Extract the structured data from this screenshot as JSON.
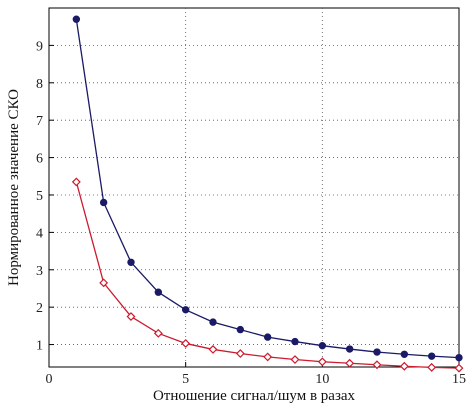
{
  "chart_data": {
    "type": "line",
    "title": "",
    "xlabel": "Отношение сигнал/шум в разах",
    "ylabel": "Нормированное значение СКО",
    "xlim": [
      0,
      15
    ],
    "ylim": [
      0.4,
      10
    ],
    "xticks": [
      "0",
      "5",
      "10",
      "15"
    ],
    "yticks": [
      "1",
      "2",
      "3",
      "4",
      "5",
      "6",
      "7",
      "8",
      "9"
    ],
    "grid": true,
    "x": [
      1,
      2,
      3,
      4,
      5,
      6,
      7,
      8,
      9,
      10,
      11,
      12,
      13,
      14,
      15
    ],
    "series": [
      {
        "color": "#1a1a66",
        "marker": "circle",
        "values": [
          9.7,
          4.8,
          3.2,
          2.4,
          1.93,
          1.6,
          1.4,
          1.2,
          1.08,
          0.97,
          0.88,
          0.8,
          0.74,
          0.69,
          0.65
        ]
      },
      {
        "color": "#cc1a2e",
        "marker": "diamond",
        "values": [
          5.35,
          2.65,
          1.75,
          1.3,
          1.03,
          0.87,
          0.76,
          0.67,
          0.6,
          0.54,
          0.5,
          0.46,
          0.42,
          0.39,
          0.37
        ]
      }
    ]
  }
}
